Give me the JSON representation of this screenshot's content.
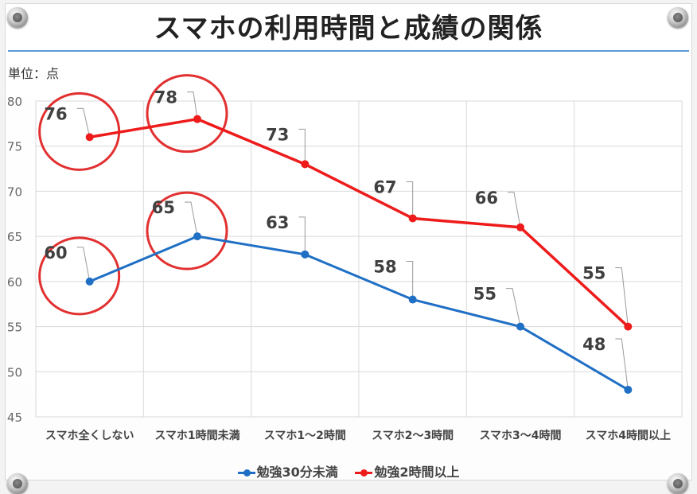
{
  "title": "スマホの利用時間と成績の関係",
  "unit_label": "単位：点",
  "chart_data": {
    "type": "line",
    "title": "スマホの利用時間と成績の関係",
    "ylabel": "単位：点",
    "ylim": [
      45,
      80
    ],
    "yticks": [
      45,
      50,
      55,
      60,
      65,
      70,
      75,
      80
    ],
    "grid": true,
    "legend_position": "bottom",
    "categories": [
      "スマホ全くしない",
      "スマホ1時間未満",
      "スマホ1〜2時間",
      "スマホ2〜3時間",
      "スマホ3〜4時間",
      "スマホ4時間以上"
    ],
    "series": [
      {
        "name": "勉強30分未満",
        "color": "#1f6fc5",
        "values": [
          60,
          65,
          63,
          58,
          55,
          48
        ]
      },
      {
        "name": "勉強2時間以上",
        "color": "#ee1b1b",
        "values": [
          76,
          78,
          73,
          67,
          66,
          55
        ]
      }
    ],
    "highlight_circles": [
      {
        "series": 1,
        "index": 0
      },
      {
        "series": 1,
        "index": 1
      },
      {
        "series": 0,
        "index": 0
      },
      {
        "series": 0,
        "index": 1
      }
    ]
  }
}
